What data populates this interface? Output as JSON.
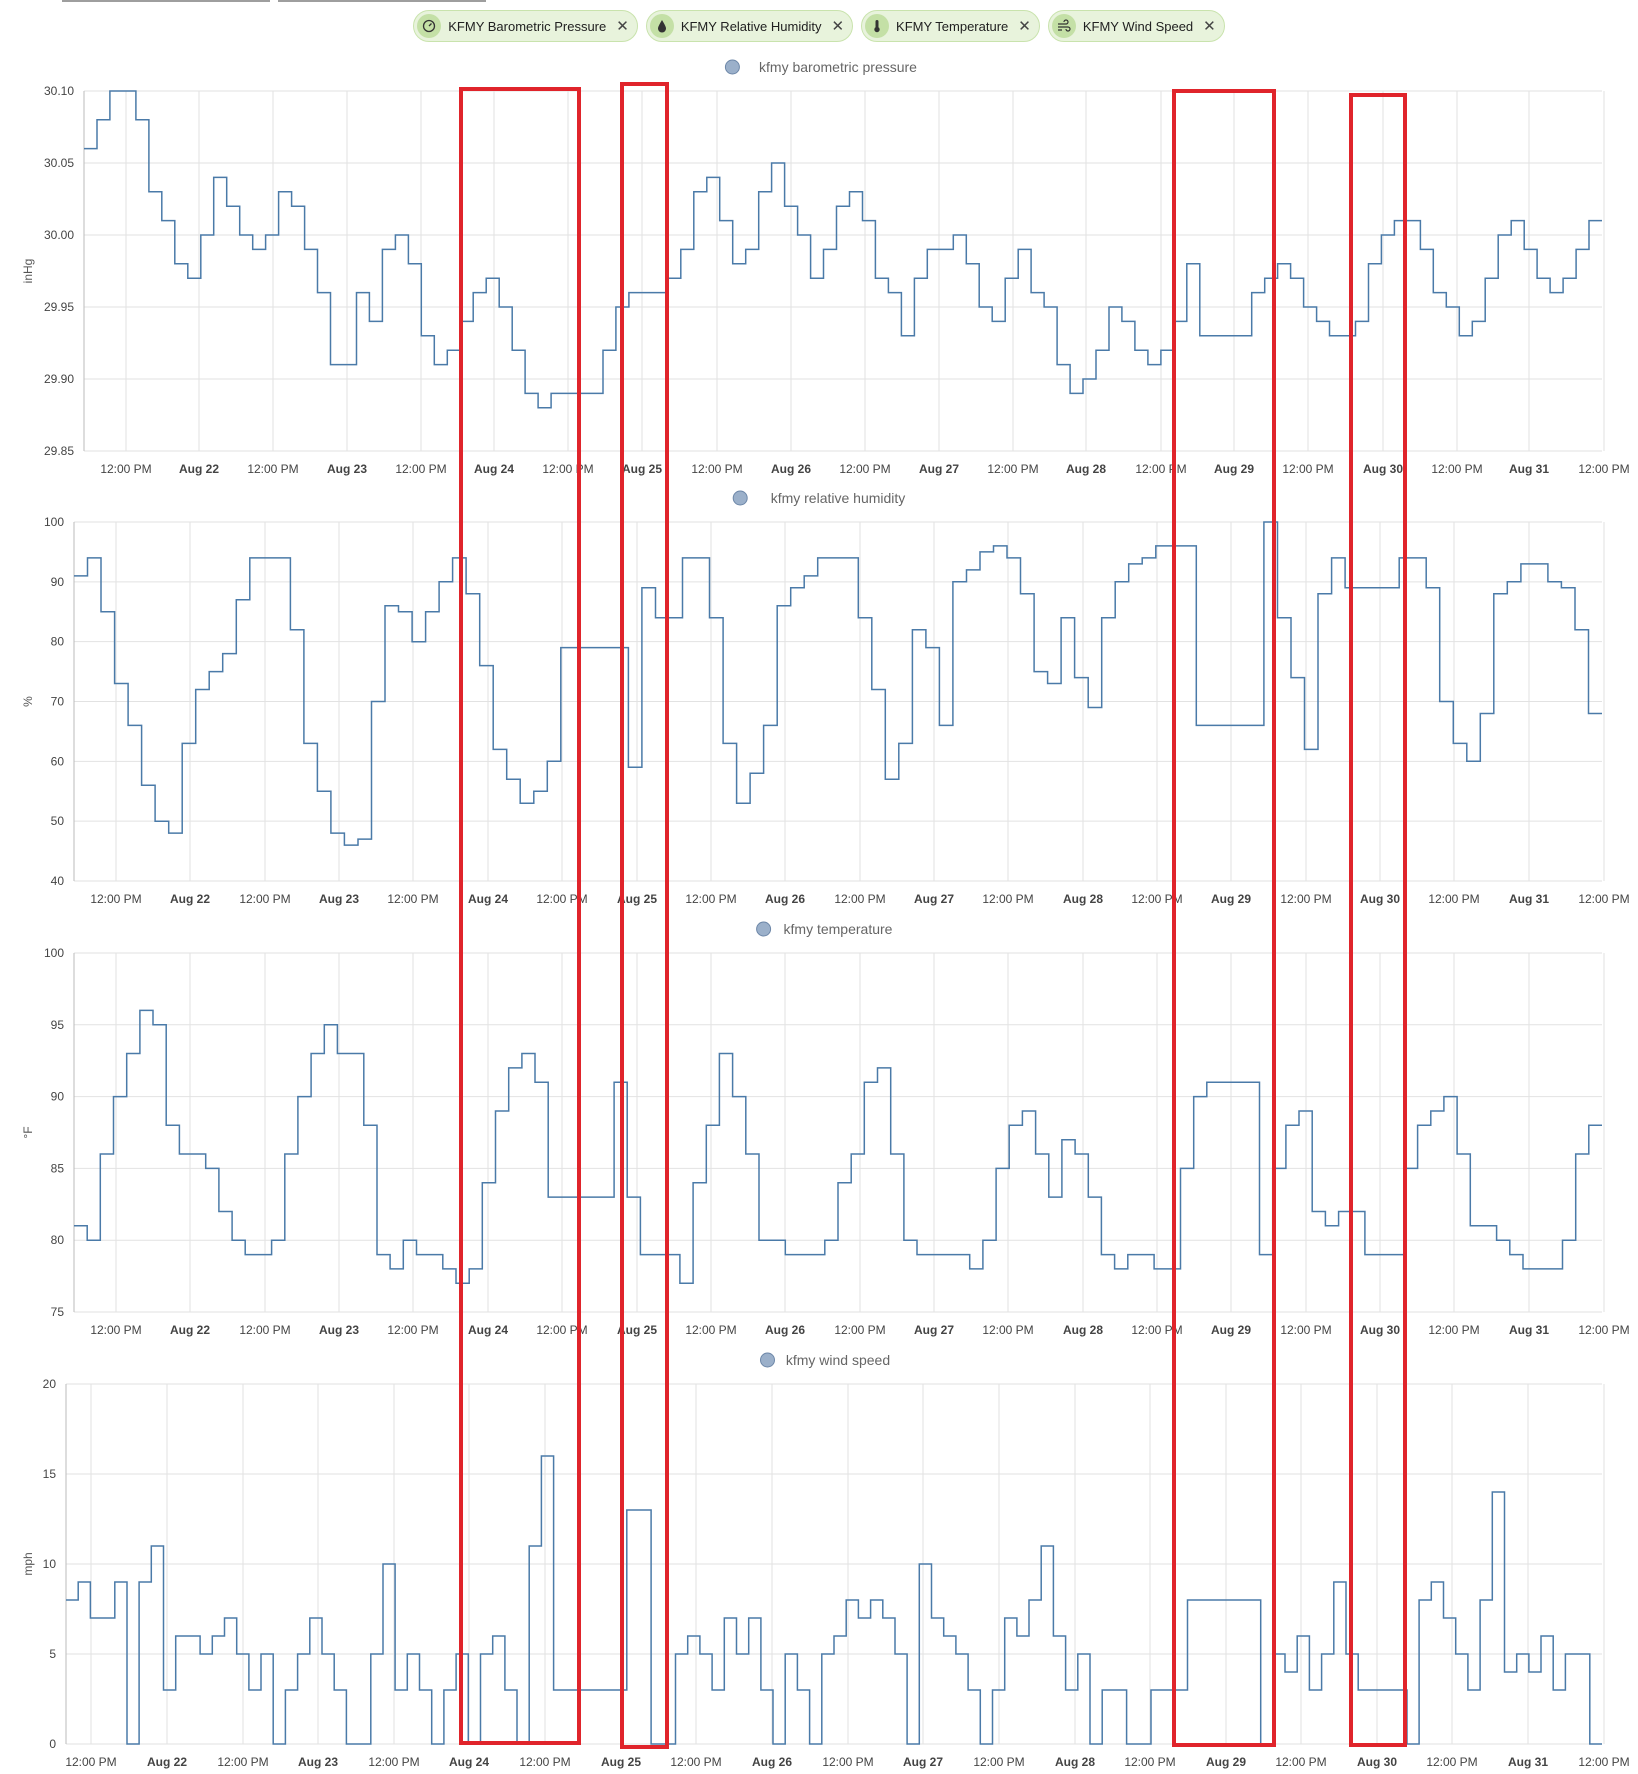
{
  "chips": [
    {
      "label": "KFMY Barometric Pressure",
      "icon": "gauge-icon"
    },
    {
      "label": "KFMY Relative Humidity",
      "icon": "water-drop-icon"
    },
    {
      "label": "KFMY Temperature",
      "icon": "thermometer-icon"
    },
    {
      "label": "KFMY Wind Speed",
      "icon": "wind-icon"
    }
  ],
  "colors": {
    "line": "#4a7aa8",
    "highlight": "#e0242b",
    "legend_dot": "#9bb0ca"
  },
  "x_ticks": [
    "12:00 PM",
    "Aug 22",
    "12:00 PM",
    "Aug 23",
    "12:00 PM",
    "Aug 24",
    "12:00 PM",
    "Aug 25",
    "12:00 PM",
    "Aug 26",
    "12:00 PM",
    "Aug 27",
    "12:00 PM",
    "Aug 28",
    "12:00 PM",
    "Aug 29",
    "12:00 PM",
    "Aug 30",
    "12:00 PM",
    "Aug 31",
    "12:00 PM"
  ],
  "chart_data": [
    {
      "type": "line",
      "title": "kfmy barometric pressure",
      "ylabel": "inHg",
      "ylim": [
        29.85,
        30.1
      ],
      "yticks": [
        "29.85",
        "29.90",
        "29.95",
        "30.00",
        "30.05",
        "30.10"
      ],
      "series": [
        {
          "name": "kfmy barometric pressure",
          "y": [
            30.06,
            30.08,
            30.1,
            30.1,
            30.08,
            30.03,
            30.01,
            29.98,
            29.97,
            30.0,
            30.04,
            30.02,
            30.0,
            29.99,
            30.0,
            30.03,
            30.02,
            29.99,
            29.96,
            29.91,
            29.91,
            29.96,
            29.94,
            29.99,
            30.0,
            29.98,
            29.93,
            29.91,
            29.92,
            29.94,
            29.96,
            29.97,
            29.95,
            29.92,
            29.89,
            29.88,
            29.89,
            29.89,
            29.89,
            29.89,
            29.92,
            29.95,
            29.96,
            29.96,
            29.96,
            29.97,
            29.99,
            30.03,
            30.04,
            30.01,
            29.98,
            29.99,
            30.03,
            30.05,
            30.02,
            30.0,
            29.97,
            29.99,
            30.02,
            30.03,
            30.01,
            29.97,
            29.96,
            29.93,
            29.97,
            29.99,
            29.99,
            30.0,
            29.98,
            29.95,
            29.94,
            29.97,
            29.99,
            29.96,
            29.95,
            29.91,
            29.89,
            29.9,
            29.92,
            29.95,
            29.94,
            29.92,
            29.91,
            29.92,
            29.94,
            29.98,
            29.93,
            29.93,
            29.93,
            29.93,
            29.96,
            29.97,
            29.98,
            29.97,
            29.95,
            29.94,
            29.93,
            29.93,
            29.94,
            29.98,
            30.0,
            30.01,
            30.01,
            29.99,
            29.96,
            29.95,
            29.93,
            29.94,
            29.97,
            30.0,
            30.01,
            29.99,
            29.97,
            29.96,
            29.97,
            29.99,
            30.01
          ]
        }
      ]
    },
    {
      "type": "line",
      "title": "kfmy relative humidity",
      "ylabel": "%",
      "ylim": [
        40,
        100
      ],
      "yticks": [
        "40",
        "50",
        "60",
        "70",
        "80",
        "90",
        "100"
      ],
      "series": [
        {
          "name": "kfmy relative humidity",
          "y": [
            91,
            94,
            85,
            73,
            66,
            56,
            50,
            48,
            63,
            72,
            75,
            78,
            87,
            94,
            94,
            94,
            82,
            63,
            55,
            48,
            46,
            47,
            70,
            86,
            85,
            80,
            85,
            90,
            94,
            88,
            76,
            62,
            57,
            53,
            55,
            60,
            79,
            79,
            79,
            79,
            79,
            59,
            89,
            84,
            84,
            94,
            94,
            84,
            63,
            53,
            58,
            66,
            86,
            89,
            91,
            94,
            94,
            94,
            84,
            72,
            57,
            63,
            82,
            79,
            66,
            90,
            92,
            95,
            96,
            94,
            88,
            75,
            73,
            84,
            74,
            69,
            84,
            90,
            93,
            94,
            96,
            96,
            96,
            66,
            66,
            66,
            66,
            66,
            100,
            84,
            74,
            62,
            88,
            94,
            89,
            89,
            89,
            89,
            94,
            94,
            89,
            70,
            63,
            60,
            68,
            88,
            90,
            93,
            93,
            90,
            89,
            82,
            68
          ]
        }
      ]
    },
    {
      "type": "line",
      "title": "kfmy temperature",
      "ylabel": "°F",
      "ylim": [
        75,
        100
      ],
      "yticks": [
        "75",
        "80",
        "85",
        "90",
        "95",
        "100"
      ],
      "series": [
        {
          "name": "kfmy temperature",
          "y": [
            81,
            80,
            86,
            90,
            93,
            96,
            95,
            88,
            86,
            86,
            85,
            82,
            80,
            79,
            79,
            80,
            86,
            90,
            93,
            95,
            93,
            93,
            88,
            79,
            78,
            80,
            79,
            79,
            78,
            77,
            78,
            84,
            89,
            92,
            93,
            91,
            83,
            83,
            83,
            83,
            83,
            91,
            83,
            79,
            79,
            79,
            77,
            84,
            88,
            93,
            90,
            86,
            80,
            80,
            79,
            79,
            79,
            80,
            84,
            86,
            91,
            92,
            86,
            80,
            79,
            79,
            79,
            79,
            78,
            80,
            85,
            88,
            89,
            86,
            83,
            87,
            86,
            83,
            79,
            78,
            79,
            79,
            78,
            78,
            85,
            90,
            91,
            91,
            91,
            91,
            79,
            85,
            88,
            89,
            82,
            81,
            82,
            82,
            79,
            79,
            79,
            85,
            88,
            89,
            90,
            86,
            81,
            81,
            80,
            79,
            78,
            78,
            78,
            80,
            86,
            88
          ]
        }
      ]
    },
    {
      "type": "line",
      "title": "kfmy wind speed",
      "ylabel": "mph",
      "ylim": [
        0,
        20
      ],
      "yticks": [
        "0",
        "5",
        "10",
        "15",
        "20"
      ],
      "series": [
        {
          "name": "kfmy wind speed",
          "y": [
            8,
            9,
            7,
            7,
            9,
            0,
            9,
            11,
            3,
            6,
            6,
            5,
            6,
            7,
            5,
            3,
            5,
            0,
            3,
            5,
            7,
            5,
            3,
            0,
            0,
            5,
            10,
            3,
            5,
            3,
            0,
            3,
            5,
            0,
            5,
            6,
            3,
            0,
            11,
            16,
            3,
            3,
            3,
            3,
            3,
            3,
            13,
            13,
            0,
            0,
            5,
            6,
            5,
            3,
            7,
            5,
            7,
            3,
            0,
            5,
            3,
            0,
            5,
            6,
            8,
            7,
            8,
            7,
            5,
            0,
            10,
            7,
            6,
            5,
            3,
            0,
            3,
            7,
            6,
            8,
            11,
            6,
            3,
            5,
            0,
            3,
            3,
            0,
            0,
            3,
            3,
            3,
            8,
            8,
            8,
            8,
            8,
            8,
            0,
            5,
            4,
            6,
            3,
            5,
            9,
            5,
            3,
            3,
            3,
            3,
            0,
            8,
            9,
            7,
            5,
            3,
            8,
            14,
            4,
            5,
            4,
            6,
            3,
            5,
            5,
            0
          ]
        }
      ]
    }
  ]
}
